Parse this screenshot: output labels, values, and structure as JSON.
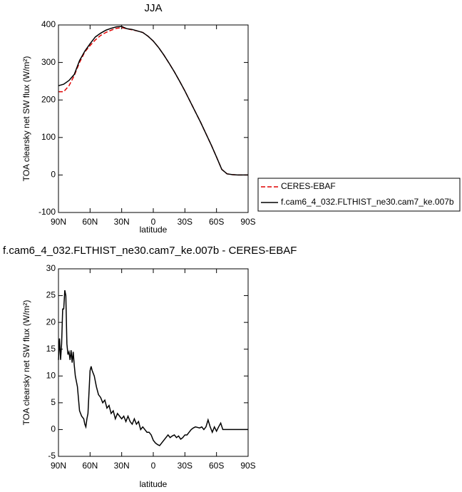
{
  "chart_data": [
    {
      "type": "line",
      "title": "JJA",
      "xlabel": "latitude",
      "ylabel": "TOA clearsky net SW flux (W/m²)",
      "xlim": [
        90,
        -90
      ],
      "ylim": [
        -100,
        400
      ],
      "xticks": [
        {
          "value": 90,
          "label": "90N"
        },
        {
          "value": 60,
          "label": "60N"
        },
        {
          "value": 30,
          "label": "30N"
        },
        0,
        {
          "value": -30,
          "label": "30S"
        },
        {
          "value": -60,
          "label": "60S"
        },
        {
          "value": -90,
          "label": "90S"
        }
      ],
      "yticks": [
        -100,
        0,
        100,
        200,
        300,
        400
      ],
      "legend": "outside-right",
      "x": [
        90,
        85,
        80,
        75,
        70,
        65,
        60,
        55,
        50,
        45,
        40,
        35,
        30,
        25,
        20,
        15,
        10,
        5,
        0,
        -5,
        -10,
        -15,
        -20,
        -25,
        -30,
        -35,
        -40,
        -45,
        -50,
        -55,
        -60,
        -65,
        -70,
        -75,
        -80,
        -85,
        -90
      ],
      "series": [
        {
          "name": "CERES-EBAF",
          "color": "#e00000",
          "dashed": true,
          "values": [
            222,
            222,
            238,
            265,
            300,
            328,
            345,
            360,
            372,
            380,
            386,
            391,
            393,
            390,
            387,
            384,
            380,
            370,
            357,
            340,
            320,
            298,
            275,
            250,
            224,
            196,
            168,
            140,
            110,
            80,
            48,
            15,
            3,
            1,
            0,
            0,
            0
          ]
        },
        {
          "name": "f.cam6_4_032.FLTHIST_ne30.cam7_ke.007b",
          "color": "#000000",
          "dashed": false,
          "values": [
            238,
            242,
            252,
            268,
            305,
            330,
            350,
            368,
            378,
            386,
            391,
            395,
            396,
            390,
            388,
            384,
            380,
            370,
            357,
            340,
            320,
            298,
            275,
            250,
            224,
            196,
            168,
            140,
            110,
            80,
            48,
            15,
            3,
            1,
            0,
            0,
            0
          ]
        }
      ]
    },
    {
      "type": "line",
      "title": "f.cam6_4_032.FLTHIST_ne30.cam7_ke.007b - CERES-EBAF",
      "xlabel": "latitude",
      "ylabel": "TOA clearsky net SW flux (W/m²)",
      "xlim": [
        90,
        -90
      ],
      "ylim": [
        -5,
        30
      ],
      "xticks": [
        {
          "value": 90,
          "label": "90N"
        },
        {
          "value": 60,
          "label": "60N"
        },
        {
          "value": 30,
          "label": "30N"
        },
        0,
        {
          "value": -30,
          "label": "30S"
        },
        {
          "value": -60,
          "label": "60S"
        },
        {
          "value": -90,
          "label": "90S"
        }
      ],
      "yticks": [
        -5,
        0,
        5,
        10,
        15,
        20,
        25,
        30
      ],
      "x": [
        90,
        89,
        88,
        87,
        86,
        85,
        84,
        83,
        82,
        81,
        80,
        79,
        78,
        77,
        76,
        75,
        74,
        72,
        70,
        68,
        66,
        65,
        64,
        63,
        62,
        61,
        60,
        59,
        58,
        56,
        54,
        52,
        50,
        48,
        46,
        44,
        42,
        40,
        38,
        36,
        34,
        32,
        30,
        28,
        26,
        24,
        22,
        20,
        18,
        16,
        14,
        12,
        10,
        8,
        6,
        4,
        2,
        0,
        -2,
        -4,
        -6,
        -8,
        -10,
        -12,
        -14,
        -16,
        -18,
        -20,
        -22,
        -24,
        -26,
        -28,
        -30,
        -32,
        -34,
        -36,
        -38,
        -40,
        -44,
        -46,
        -48,
        -50,
        -52,
        -54,
        -56,
        -58,
        -60,
        -62,
        -64,
        -66,
        -70,
        -90
      ],
      "series": [
        {
          "color": "#000000",
          "dashed": false,
          "values": [
            13,
            17,
            13,
            16,
            22.5,
            22.5,
            26,
            25,
            16,
            14,
            14.5,
            13,
            14.8,
            12.5,
            14.5,
            12,
            10,
            8,
            3.5,
            2.5,
            2,
            1,
            0.5,
            2,
            3,
            7,
            11,
            11.8,
            11,
            10,
            8,
            6.5,
            6,
            5,
            5.5,
            4,
            4.5,
            3,
            3.5,
            2,
            3,
            2.5,
            2,
            2.5,
            1.5,
            2.5,
            1.5,
            1,
            2,
            1,
            1.5,
            0,
            0.5,
            0,
            -0.5,
            -0.5,
            -1,
            -2,
            -2.5,
            -2.8,
            -3,
            -2.5,
            -2,
            -1.5,
            -1,
            -1.5,
            -1.2,
            -1,
            -1.5,
            -1.2,
            -1.8,
            -1.5,
            -1,
            -1,
            -0.5,
            0,
            0.3,
            0.5,
            0.3,
            0.5,
            0,
            0.5,
            1.8,
            0.5,
            -0.5,
            0.5,
            -0.3,
            0.5,
            1.2,
            0,
            0,
            0
          ]
        }
      ]
    }
  ]
}
